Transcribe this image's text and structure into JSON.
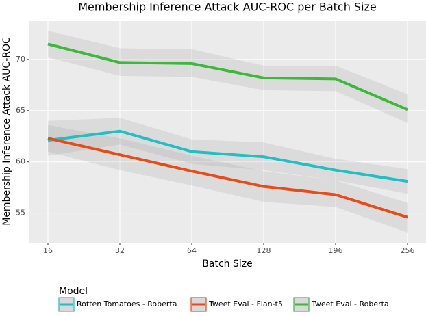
{
  "chart_data": {
    "type": "line",
    "title": "Membership Inference Attack AUC-ROC per Batch Size",
    "x_label": "Batch Size",
    "y_label": "Membership Inference Attack AUC-ROC",
    "legend_title": "Model",
    "categories": [
      "16",
      "32",
      "64",
      "128",
      "196",
      "256"
    ],
    "series": [
      {
        "name": "Rotten Tomatoes - Roberta",
        "color": "#1fbfc4",
        "values": [
          62.1,
          63.0,
          61.0,
          60.5,
          59.2,
          58.1
        ],
        "ci_lower": [
          60.6,
          61.7,
          59.8,
          59.2,
          58.2,
          56.9
        ],
        "ci_upper": [
          64.0,
          64.3,
          62.2,
          61.9,
          60.3,
          59.3
        ]
      },
      {
        "name": "Tweet Eval - Flan-t5",
        "color": "#e84c16",
        "values": [
          62.3,
          60.7,
          59.1,
          57.6,
          56.8,
          54.6
        ],
        "ci_lower": [
          61.0,
          59.2,
          57.7,
          56.1,
          55.6,
          53.1
        ],
        "ci_upper": [
          63.6,
          62.3,
          60.6,
          59.1,
          58.2,
          56.0
        ]
      },
      {
        "name": "Tweet Eval - Roberta",
        "color": "#3cb83a",
        "values": [
          71.5,
          69.7,
          69.6,
          68.2,
          68.1,
          65.1
        ],
        "ci_lower": [
          70.2,
          68.4,
          68.3,
          67.0,
          66.9,
          63.8
        ],
        "ci_upper": [
          72.8,
          71.1,
          71.0,
          69.4,
          69.4,
          66.6
        ]
      }
    ],
    "ylim": [
      52.1,
      73.8
    ],
    "yticks": [
      55,
      60,
      65,
      70
    ],
    "grid": true,
    "legend_position": "bottom"
  }
}
